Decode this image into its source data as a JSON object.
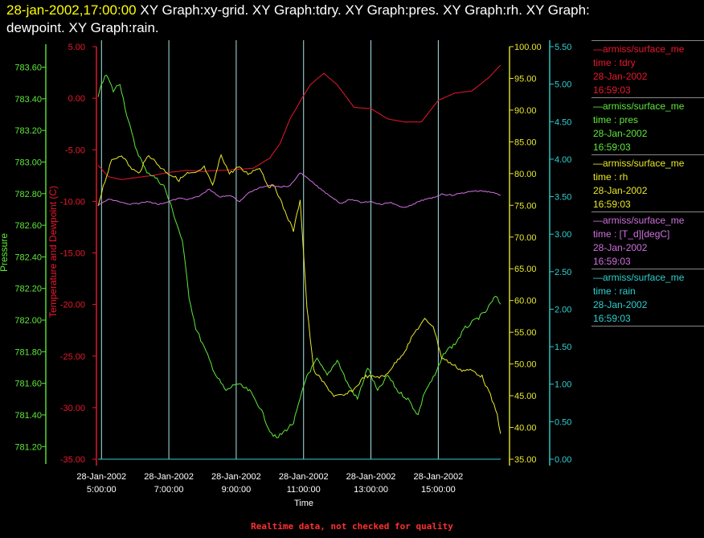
{
  "header": {
    "timestamp": "28-jan-2002,17:00:00",
    "title_line1": "XY Graph:xy-grid.  XY Graph:tdry.  XY Graph:pres.  XY Graph:rh.  XY Graph:",
    "title_line2": "dewpoint.  XY Graph:rain."
  },
  "footer": {
    "note": "Realtime data, not checked for quality"
  },
  "colors": {
    "tdry": "#e8192d",
    "pres": "#5fe83a",
    "rh": "#e8e82a",
    "dewpoint": "#d070e0",
    "rain": "#30d0d0",
    "grid": "#a8e8e8"
  },
  "legend": [
    {
      "key": "tdry",
      "name": "armiss/surface_me",
      "var": "time : tdry",
      "date": "28-Jan-2002",
      "time": "16:59:03"
    },
    {
      "key": "pres",
      "name": "armiss/surface_me",
      "var": "time : pres",
      "date": "28-Jan-2002",
      "time": "16:59:03"
    },
    {
      "key": "rh",
      "name": "armiss/surface_me",
      "var": "time : rh",
      "date": "28-Jan-2002",
      "time": "16:59:03"
    },
    {
      "key": "dewpoint",
      "name": "armiss/surface_me",
      "var": "time : [T_d][degC]",
      "date": "28-Jan-2002",
      "time": "16:59:03"
    },
    {
      "key": "rain",
      "name": "armiss/surface_me",
      "var": "time : rain",
      "date": "28-Jan-2002",
      "time": "16:59:03"
    }
  ],
  "chart_data": {
    "type": "line",
    "xlabel": "Time",
    "xlim": [
      4.85,
      16.9
    ],
    "x_ticks": [
      {
        "x": 5,
        "date": "28-Jan-2002",
        "time": "5:00:00"
      },
      {
        "x": 7,
        "date": "28-Jan-2002",
        "time": "7:00:00"
      },
      {
        "x": 9,
        "date": "28-Jan-2002",
        "time": "9:00:00"
      },
      {
        "x": 11,
        "date": "28-Jan-2002",
        "time": "11:00:00"
      },
      {
        "x": 13,
        "date": "28-Jan-2002",
        "time": "13:00:00"
      },
      {
        "x": 15,
        "date": "28-Jan-2002",
        "time": "15:00:00"
      }
    ],
    "axes": {
      "pressure": {
        "label": "Pressure",
        "ylim": [
          781.12,
          783.73
        ],
        "ticks": [
          "783.60",
          "783.40",
          "783.20",
          "783.00",
          "782.80",
          "782.60",
          "782.40",
          "782.20",
          "782.00",
          "781.80",
          "781.60",
          "781.40",
          "781.20"
        ]
      },
      "temp": {
        "label": "Temperature and Dewpoint (C)",
        "ylim": [
          -35,
          5
        ],
        "ticks": [
          "5.00",
          "0.00",
          "-5.00",
          "-10.00",
          "-15.00",
          "-20.00",
          "-25.00",
          "-30.00",
          "-35.00"
        ]
      },
      "rh": {
        "label": "",
        "ylim": [
          35,
          100
        ],
        "ticks": [
          "100.00",
          "95.00",
          "90.00",
          "85.00",
          "80.00",
          "75.00",
          "70.00",
          "65.00",
          "60.00",
          "55.00",
          "50.00",
          "45.00",
          "40.00",
          "35.00"
        ]
      },
      "rain": {
        "label": "",
        "ylim": [
          0,
          5.5
        ],
        "ticks": [
          "5.50",
          "5.00",
          "4.50",
          "4.00",
          "3.50",
          "3.00",
          "2.50",
          "2.00",
          "1.50",
          "1.00",
          "0.50",
          "0.00"
        ]
      }
    },
    "series": [
      {
        "key": "tdry",
        "axis": "temp",
        "x": [
          4.9,
          5.2,
          5.6,
          6.0,
          6.5,
          7.0,
          7.5,
          8.0,
          8.5,
          9.0,
          9.5,
          10.0,
          10.3,
          10.6,
          10.9,
          11.2,
          11.6,
          12.0,
          12.5,
          13.0,
          13.5,
          14.0,
          14.5,
          15.0,
          15.5,
          16.0,
          16.5,
          16.85
        ],
        "y": [
          -6.5,
          -7.6,
          -7.9,
          -7.7,
          -7.5,
          -7.2,
          -7.0,
          -7.1,
          -7.0,
          -6.9,
          -6.8,
          -5.8,
          -4.4,
          -2.0,
          -0.3,
          1.3,
          2.4,
          1.3,
          -0.9,
          -1.0,
          -2.0,
          -2.3,
          -2.3,
          -0.2,
          0.5,
          0.7,
          2.0,
          3.2
        ]
      },
      {
        "key": "pres",
        "axis": "pressure",
        "x": [
          4.9,
          5.0,
          5.15,
          5.35,
          5.55,
          5.75,
          6.0,
          6.3,
          6.6,
          6.85,
          7.1,
          7.4,
          7.6,
          7.8,
          8.1,
          8.4,
          8.7,
          9.0,
          9.4,
          9.7,
          10.0,
          10.2,
          10.45,
          10.7,
          10.9,
          11.1,
          11.4,
          11.7,
          12.0,
          12.3,
          12.6,
          12.9,
          13.2,
          13.5,
          13.8,
          14.1,
          14.4,
          14.6,
          14.9,
          15.2,
          15.5,
          15.8,
          16.1,
          16.4,
          16.7,
          16.85
        ],
        "y": [
          783.4,
          783.5,
          783.55,
          783.45,
          783.5,
          783.3,
          783.1,
          782.95,
          782.9,
          782.85,
          782.7,
          782.5,
          782.15,
          781.95,
          781.8,
          781.65,
          781.55,
          781.6,
          781.55,
          781.45,
          781.3,
          781.25,
          781.3,
          781.35,
          781.5,
          781.65,
          781.75,
          781.65,
          781.75,
          781.6,
          781.5,
          781.7,
          781.55,
          781.65,
          781.55,
          781.5,
          781.4,
          781.55,
          781.65,
          781.8,
          781.85,
          781.95,
          782.0,
          782.05,
          782.15,
          782.1
        ]
      },
      {
        "key": "rh",
        "axis": "rh",
        "x": [
          4.9,
          5.05,
          5.3,
          5.6,
          5.85,
          6.1,
          6.4,
          6.75,
          7.0,
          7.3,
          7.55,
          7.8,
          8.05,
          8.3,
          8.55,
          8.8,
          9.05,
          9.35,
          9.7,
          9.95,
          10.15,
          10.45,
          10.7,
          10.9,
          11.1,
          11.3,
          11.6,
          11.9,
          12.2,
          12.5,
          12.8,
          13.1,
          13.4,
          13.7,
          14.0,
          14.3,
          14.6,
          14.85,
          15.1,
          15.4,
          15.7,
          16.0,
          16.3,
          16.55,
          16.75,
          16.85
        ],
        "y": [
          75,
          78,
          82,
          83,
          81,
          80,
          83,
          81,
          80,
          79,
          80,
          80,
          81,
          78,
          83,
          80,
          81,
          80,
          81,
          78,
          78,
          74,
          71,
          76,
          59,
          49,
          47,
          45,
          45,
          46,
          48,
          48,
          48,
          50,
          52,
          55,
          57,
          56,
          51,
          50,
          49,
          49,
          48,
          45,
          42,
          39
        ]
      },
      {
        "key": "dewpoint",
        "axis": "temp",
        "x": [
          4.9,
          5.2,
          5.5,
          5.8,
          6.1,
          6.4,
          6.7,
          7.0,
          7.3,
          7.6,
          7.9,
          8.2,
          8.5,
          8.8,
          9.1,
          9.4,
          9.7,
          10.0,
          10.3,
          10.6,
          10.9,
          11.2,
          11.5,
          11.8,
          12.1,
          12.4,
          12.7,
          13.0,
          13.3,
          13.6,
          13.9,
          14.2,
          14.5,
          14.8,
          15.1,
          15.4,
          15.7,
          16.0,
          16.3,
          16.6,
          16.85
        ],
        "y": [
          -10.4,
          -9.8,
          -10.0,
          -10.3,
          -10.2,
          -10.0,
          -10.3,
          -10.0,
          -9.7,
          -9.8,
          -9.5,
          -8.8,
          -9.6,
          -9.4,
          -10.0,
          -9.1,
          -8.7,
          -8.4,
          -8.6,
          -8.5,
          -7.2,
          -8.0,
          -8.8,
          -9.5,
          -10.2,
          -9.8,
          -10.1,
          -10.0,
          -10.3,
          -10.1,
          -10.6,
          -10.4,
          -9.9,
          -9.7,
          -9.3,
          -9.4,
          -9.2,
          -9.0,
          -9.0,
          -9.1,
          -9.4
        ]
      },
      {
        "key": "rain",
        "axis": "rain",
        "x": [
          4.9,
          16.85
        ],
        "y": [
          0.0,
          0.0
        ]
      }
    ]
  }
}
